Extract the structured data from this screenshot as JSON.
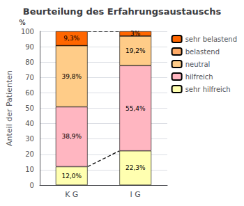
{
  "chart_data": {
    "type": "bar",
    "title": "Beurteilung des Erfahrungsaustauschs",
    "ylabel": "Anteil der Patienten",
    "categories": [
      "K G",
      "I G"
    ],
    "stacked": true,
    "series": [
      {
        "name": "sehr hilfreich",
        "color": "#FFFFB0",
        "values": [
          12.0,
          22.3
        ],
        "value_labels": [
          "12,0%",
          "22,3%"
        ]
      },
      {
        "name": "hilfreich",
        "color": "#FFB6C1",
        "values": [
          38.9,
          55.4
        ],
        "value_labels": [
          "38,9%",
          "55,4%"
        ]
      },
      {
        "name": "neutral",
        "color": "#FFCC88",
        "values": [
          39.8,
          19.2
        ],
        "value_labels": [
          "39,8%",
          "19,2%"
        ]
      },
      {
        "name": "belastend",
        "color": "#FFAA66",
        "values": [
          0.0,
          0.1
        ],
        "value_labels": [
          null,
          null
        ]
      },
      {
        "name": "sehr belastend",
        "color": "#FF6600",
        "values": [
          9.3,
          3.0
        ],
        "value_labels": [
          "9,3%",
          "3%"
        ]
      }
    ],
    "ylim": [
      0,
      100
    ],
    "yticks": [
      0,
      10,
      20,
      30,
      40,
      50,
      60,
      70,
      80,
      90,
      100
    ],
    "grid": true,
    "legend": "upper right",
    "annotations": [
      "%"
    ],
    "connector_lines": [
      [
        100.0,
        100.0
      ],
      [
        12.0,
        22.3
      ]
    ]
  }
}
